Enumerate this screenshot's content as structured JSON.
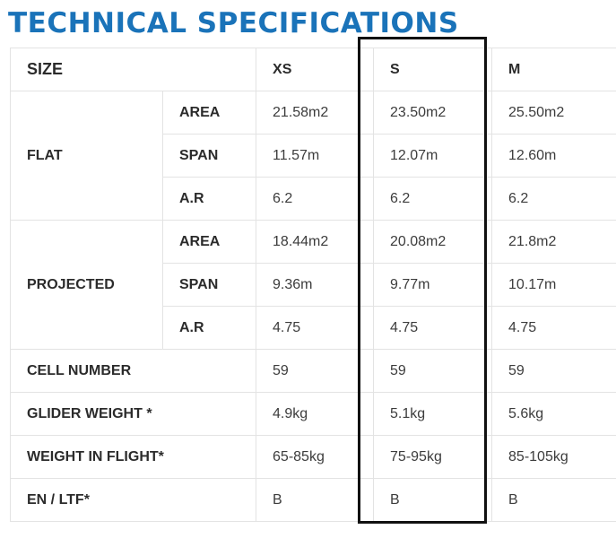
{
  "title": "TECHNICAL SPECIFICATIONS",
  "colors": {
    "title": "#1a73b9",
    "border": "#e3e3e3",
    "highlight": "#111111"
  },
  "header": {
    "label": "SIZE",
    "sizes": [
      "XS",
      "S",
      "M"
    ]
  },
  "flat": {
    "label": "FLAT",
    "rows": [
      {
        "label": "AREA",
        "values": [
          "21.58m2",
          "23.50m2",
          "25.50m2"
        ]
      },
      {
        "label": "SPAN",
        "values": [
          "11.57m",
          "12.07m",
          "12.60m"
        ]
      },
      {
        "label": "A.R",
        "values": [
          "6.2",
          "6.2",
          "6.2"
        ]
      }
    ]
  },
  "projected": {
    "label": "PROJECTED",
    "rows": [
      {
        "label": "AREA",
        "values": [
          "18.44m2",
          "20.08m2",
          "21.8m2"
        ]
      },
      {
        "label": "SPAN",
        "values": [
          "9.36m",
          "9.77m",
          "10.17m"
        ]
      },
      {
        "label": "A.R",
        "values": [
          "4.75",
          "4.75",
          "4.75"
        ]
      }
    ]
  },
  "singles": [
    {
      "label": "CELL NUMBER",
      "values": [
        "59",
        "59",
        "59"
      ]
    },
    {
      "label": "GLIDER WEIGHT *",
      "values": [
        "4.9kg",
        "5.1kg",
        "5.6kg"
      ]
    },
    {
      "label": "WEIGHT IN FLIGHT*",
      "values": [
        "65-85kg",
        "75-95kg",
        "85-105kg"
      ]
    },
    {
      "label": "EN / LTF*",
      "values": [
        "B",
        "B",
        "B"
      ]
    }
  ],
  "highlighted_size": "S"
}
